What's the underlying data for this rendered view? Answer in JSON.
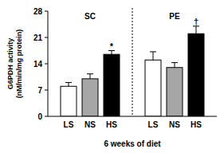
{
  "chart_data": {
    "type": "bar",
    "x_label": "6 weeks of diet",
    "y_label": [
      "G6PDH activity",
      "(nM/min/mg protein)"
    ],
    "group_labels": [
      "SC",
      "PE"
    ],
    "categories": [
      "LS",
      "NS",
      "HS",
      "LS",
      "NS",
      "HS"
    ],
    "values": [
      8,
      10,
      16.5,
      15,
      13,
      22
    ],
    "errors": [
      1,
      1.3,
      1,
      2.2,
      1.3,
      2
    ],
    "mark_labels": [
      null,
      null,
      "*",
      null,
      null,
      "†"
    ],
    "colors": [
      "#ffffff",
      "#a6a6a6",
      "#000000",
      "#ffffff",
      "#a6a6a6",
      "#000000"
    ],
    "ylim": [
      0,
      28
    ],
    "yticks": [
      0,
      7,
      14,
      21,
      28
    ],
    "grid": false
  }
}
